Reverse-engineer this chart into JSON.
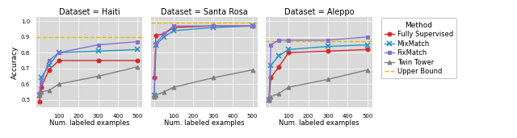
{
  "datasets": [
    "Haiti",
    "Santa Rosa",
    "Aleppo"
  ],
  "x_values": [
    1,
    10,
    50,
    100,
    300,
    500
  ],
  "methods": [
    "Fully Supervised",
    "MixMatch",
    "FixMatch",
    "Twin Tower"
  ],
  "line_colors": [
    "#d62728",
    "#2196c4",
    "#8470d4",
    "#808080"
  ],
  "line_markers": [
    "o",
    "x",
    "s",
    "^"
  ],
  "upper_bound_color": "#e6b800",
  "haiti": {
    "upper_bound": 0.9,
    "Fully Supervised": [
      0.49,
      0.58,
      0.69,
      0.75,
      0.75,
      0.75
    ],
    "MixMatch": [
      0.53,
      0.64,
      0.72,
      0.8,
      0.81,
      0.82
    ],
    "FixMatch": [
      0.54,
      0.61,
      0.75,
      0.8,
      0.85,
      0.87
    ],
    "Twin Tower": [
      0.53,
      0.55,
      0.56,
      0.6,
      0.65,
      0.71
    ]
  },
  "santa_rosa": {
    "upper_bound": 0.99,
    "Fully Supervised": [
      0.64,
      0.91,
      0.92,
      0.96,
      0.97,
      0.97
    ],
    "MixMatch": [
      0.53,
      0.85,
      0.9,
      0.94,
      0.96,
      0.97
    ],
    "FixMatch": [
      0.52,
      0.86,
      0.92,
      0.97,
      0.97,
      0.97
    ],
    "Twin Tower": [
      0.52,
      0.53,
      0.55,
      0.58,
      0.64,
      0.69
    ]
  },
  "aleppo": {
    "upper_bound": 0.875,
    "Fully Supervised": [
      0.5,
      0.64,
      0.71,
      0.8,
      0.81,
      0.82
    ],
    "MixMatch": [
      0.5,
      0.72,
      0.78,
      0.82,
      0.84,
      0.85
    ],
    "FixMatch": [
      0.51,
      0.85,
      0.88,
      0.88,
      0.88,
      0.9
    ],
    "Twin Tower": [
      0.5,
      0.52,
      0.54,
      0.58,
      0.63,
      0.69
    ]
  },
  "ylabel": "Accuracy",
  "xlabel": "Num. labeled examples",
  "title_prefix": "Dataset = ",
  "background_color": "#d9d9d9",
  "yticks": [
    0.5,
    0.6,
    0.7,
    0.8,
    0.9,
    1.0
  ],
  "xticks": [
    0,
    100,
    200,
    300,
    400,
    500
  ]
}
